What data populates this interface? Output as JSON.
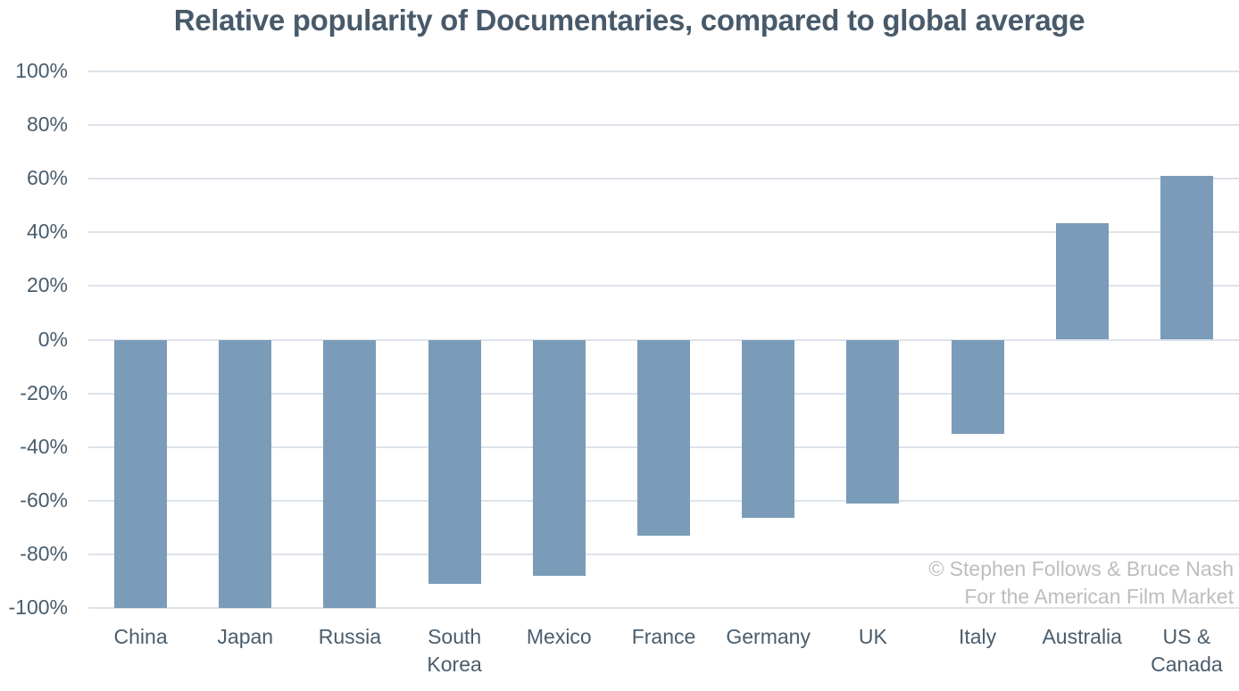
{
  "chart_data": {
    "type": "bar",
    "title": "Relative popularity of Documentaries, compared to global average",
    "xlabel": "",
    "ylabel": "",
    "categories": [
      "China",
      "Japan",
      "Russia",
      "South Korea",
      "Mexico",
      "France",
      "Germany",
      "UK",
      "Italy",
      "Australia",
      "US & Canada"
    ],
    "values": [
      -100,
      -100,
      -100,
      -91,
      -88,
      -73,
      -66.5,
      -61,
      -35,
      43.5,
      61
    ],
    "ylim": [
      -100,
      100
    ],
    "yticks": [
      "100%",
      "80%",
      "60%",
      "40%",
      "20%",
      "0%",
      "-20%",
      "-40%",
      "-60%",
      "-80%",
      "-100%"
    ],
    "ytick_values": [
      100,
      80,
      60,
      40,
      20,
      0,
      -20,
      -40,
      -60,
      -80,
      -100
    ],
    "grid": true,
    "legend": null,
    "bar_color": "#7a9cb8",
    "annotations": [
      "© Stephen Follows & Bruce Nash",
      "For the American Film Market"
    ]
  },
  "title": "Relative popularity of Documentaries, compared to global average",
  "xlabels": [
    [
      "China"
    ],
    [
      "Japan"
    ],
    [
      "Russia"
    ],
    [
      "South",
      "Korea"
    ],
    [
      "Mexico"
    ],
    [
      "France"
    ],
    [
      "Germany"
    ],
    [
      "UK"
    ],
    [
      "Italy"
    ],
    [
      "Australia"
    ],
    [
      "US &",
      "Canada"
    ]
  ],
  "credit": {
    "line1": "© Stephen Follows & Bruce Nash",
    "line2": "For the American Film Market"
  },
  "colors": {
    "bar": "#7a9cb8",
    "title": "#485a6a",
    "axis_text": "#4a5d6d",
    "grid": "#dde3ea",
    "credit": "#bdbdbd"
  }
}
